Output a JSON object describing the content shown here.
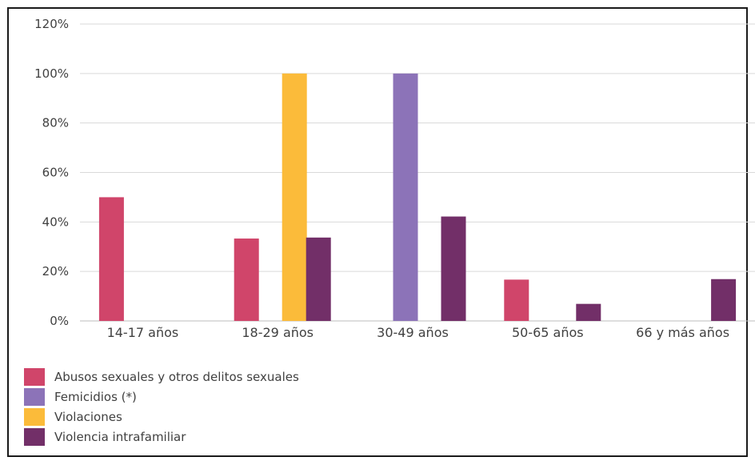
{
  "chart_data": {
    "type": "bar",
    "categories": [
      "14-17 años",
      "18-29 años",
      "30-49 años",
      "50-65 años",
      "66 y más años"
    ],
    "series": [
      {
        "name": "Abusos sexuales y otros delitos sexuales",
        "color": "#d0456a",
        "values": [
          50,
          33.3,
          0,
          16.7,
          0
        ]
      },
      {
        "name": "Femicidios (*)",
        "color": "#8c73b8",
        "values": [
          0,
          0,
          100,
          0,
          0
        ]
      },
      {
        "name": "Violaciones",
        "color": "#fbbb3a",
        "values": [
          0,
          100,
          0,
          0,
          0
        ]
      },
      {
        "name": "Violencia intrafamiliar",
        "color": "#722f68",
        "values": [
          0,
          33.7,
          42.2,
          6.9,
          16.9
        ]
      }
    ],
    "y_ticks": [
      "0%",
      "20%",
      "40%",
      "60%",
      "80%",
      "100%",
      "120%"
    ],
    "ylim": [
      0,
      120
    ],
    "grid": true,
    "legend_position": "bottom-left",
    "title": "",
    "xlabel": "",
    "ylabel": ""
  }
}
